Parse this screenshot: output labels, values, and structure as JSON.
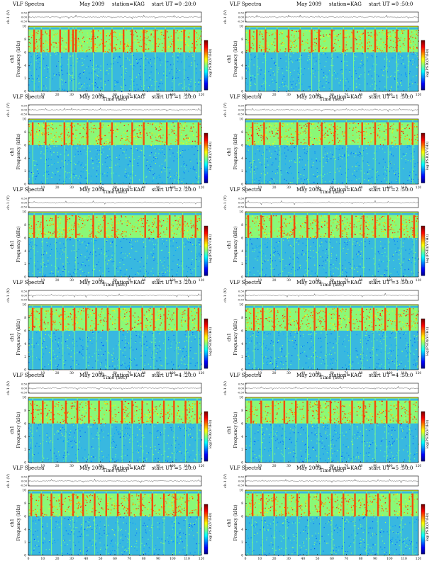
{
  "figure": {
    "panels": [
      {
        "label": "VLF Spectra",
        "date": "May 2009",
        "station": "station=KAG",
        "start": "start  UT =0 :20:0"
      },
      {
        "label": "VLF Spectra",
        "date": "May 2009",
        "station": "station=KAG",
        "start": "start  UT =0 :50:0"
      },
      {
        "label": "VLF Spectra",
        "date": "May 2009",
        "station": "station=KAG",
        "start": "start  UT =1 :20:0"
      },
      {
        "label": "VLF Spectra",
        "date": "May 2009",
        "station": "station=KAG",
        "start": "start  UT =1 :50:0"
      },
      {
        "label": "VLF Spectra",
        "date": "May 2009",
        "station": "station=KAG",
        "start": "start  UT =2 :20:0"
      },
      {
        "label": "VLF Spectra",
        "date": "May 2009",
        "station": "station=KAG",
        "start": "start  UT =2 :50:0"
      },
      {
        "label": "VLF Spectra",
        "date": "May 2009",
        "station": "station=KAG",
        "start": "start  UT =3 :20:0"
      },
      {
        "label": "VLF Spectra",
        "date": "May 2009",
        "station": "station=KAG",
        "start": "start  UT =3 :50:0"
      },
      {
        "label": "VLF Spectra",
        "date": "May 2009",
        "station": "station=KAG",
        "start": "start  UT =4 :20:0"
      },
      {
        "label": "VLF Spectra",
        "date": "May 2009",
        "station": "station=KAG",
        "start": "start  UT =4 :50:0"
      },
      {
        "label": "VLF Spectra",
        "date": "May 2009",
        "station": "station=KAG",
        "start": "start  UT =5 :20:0"
      },
      {
        "label": "VLF Spectra",
        "date": "May 2009",
        "station": "station=KAG",
        "start": "start  UT =5 :50:0"
      }
    ]
  },
  "chart_data": {
    "type": "heatmap",
    "xlabel": "Time (sec)",
    "ylabel": "Frequency (kHz)",
    "channel_label": "ch1",
    "waveform_ylabel": "ch.1 (V)",
    "waveform_ticks": [
      "0.50",
      "0.00",
      "-0.50"
    ],
    "waveform_ylim": [
      -0.5,
      0.5
    ],
    "colorbar_label": "log(PSD)(V²/Hz)",
    "xlim": [
      0,
      120
    ],
    "x_ticks": [
      0,
      10,
      20,
      30,
      40,
      50,
      60,
      70,
      80,
      90,
      100,
      110,
      120
    ],
    "ylim": [
      0,
      10
    ],
    "y_ticks": [
      0,
      2,
      4,
      6,
      8,
      10
    ],
    "colormap": [
      "#00008f",
      "#0000ff",
      "#0080ff",
      "#00ffff",
      "#80ff80",
      "#ffff00",
      "#ff8000",
      "#ff0000",
      "#800000"
    ],
    "background_color": "#38b8e0",
    "band_kHz": [
      6,
      9.5
    ],
    "panels": [
      {
        "start_ut": "0:20:0",
        "burst_times": [
          4,
          9,
          15,
          22,
          28,
          31,
          33,
          45,
          52,
          58,
          66,
          72,
          80,
          88,
          95,
          101,
          108,
          115
        ]
      },
      {
        "start_ut": "0:50:0",
        "burst_times": [
          3,
          8,
          14,
          22,
          30,
          38,
          46,
          51,
          60,
          68,
          75,
          83,
          90,
          98,
          105,
          113
        ]
      },
      {
        "start_ut": "1:20:0",
        "burst_times": [
          3,
          12,
          25,
          30,
          41,
          50,
          58,
          72,
          80,
          96,
          104,
          118
        ]
      },
      {
        "start_ut": "1:50:0",
        "burst_times": [
          5,
          13,
          24,
          36,
          44,
          53,
          62,
          70,
          81,
          90,
          99,
          107,
          116
        ]
      },
      {
        "start_ut": "2:20:0",
        "burst_times": [
          4,
          10,
          19,
          26,
          33,
          45,
          53,
          60,
          81,
          90,
          98,
          107,
          116
        ]
      },
      {
        "start_ut": "2:50:0",
        "burst_times": [
          2,
          11,
          18,
          25,
          34,
          43,
          50,
          58,
          66,
          74,
          82,
          90,
          99,
          108,
          117
        ]
      },
      {
        "start_ut": "3:20:0",
        "burst_times": [
          3,
          9,
          16,
          24,
          32,
          40,
          47,
          55,
          63,
          71,
          79,
          87,
          95,
          103,
          111,
          118
        ]
      },
      {
        "start_ut": "3:50:0",
        "burst_times": [
          6,
          12,
          20,
          29,
          37,
          48,
          56,
          64,
          73,
          81,
          89,
          97,
          105,
          114
        ]
      },
      {
        "start_ut": "4:20:0",
        "burst_times": [
          3,
          10,
          17,
          26,
          34,
          42,
          49,
          57,
          65,
          72,
          79,
          86,
          94,
          101,
          109,
          117
        ]
      },
      {
        "start_ut": "4:50:0",
        "burst_times": [
          4,
          11,
          19,
          27,
          35,
          43,
          51,
          59,
          66,
          74,
          82,
          90,
          98,
          106,
          114
        ]
      },
      {
        "start_ut": "5:20:0",
        "burst_times": [
          2,
          9,
          16,
          23,
          31,
          38,
          46,
          54,
          62,
          70,
          78,
          86,
          94,
          102,
          110,
          118
        ]
      },
      {
        "start_ut": "5:50:0",
        "burst_times": [
          5,
          12,
          20,
          28,
          36,
          44,
          52,
          60,
          68,
          76,
          84,
          92,
          100,
          108,
          116
        ]
      }
    ]
  }
}
